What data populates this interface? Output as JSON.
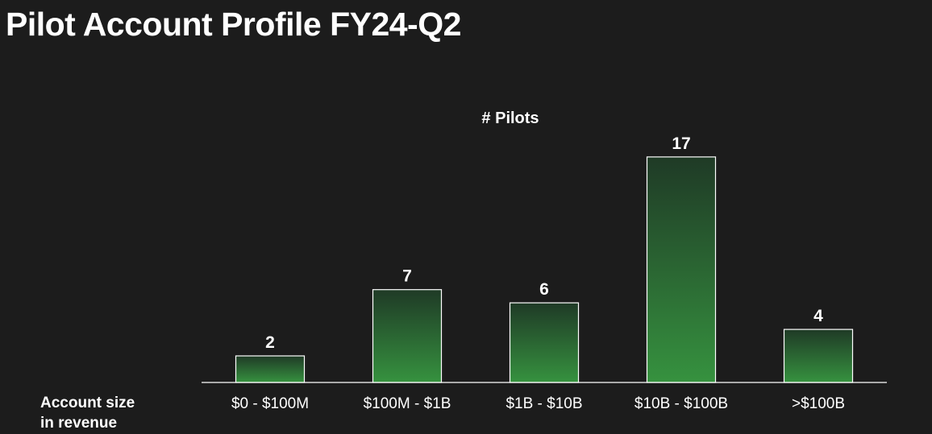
{
  "page": {
    "title": "Pilot Account Profile FY24-Q2"
  },
  "chart_data": {
    "type": "bar",
    "title": "# Pilots",
    "xlabel_lines": [
      "Account size",
      "in revenue"
    ],
    "ylabel": "",
    "categories": [
      "$0 - $100M",
      "$100M - $1B",
      "$1B - $10B",
      "$10B - $100B",
      ">$100B"
    ],
    "values": [
      2,
      7,
      6,
      17,
      4
    ],
    "ylim": [
      0,
      17.6
    ],
    "grid": false,
    "legend": "none",
    "colors": {
      "background": "#1c1c1c",
      "bar_top": "#1f3a26",
      "bar_bottom": "#36923f",
      "bar_outline": "#ffffff",
      "axis": "#ffffff",
      "text": "#ffffff"
    }
  }
}
